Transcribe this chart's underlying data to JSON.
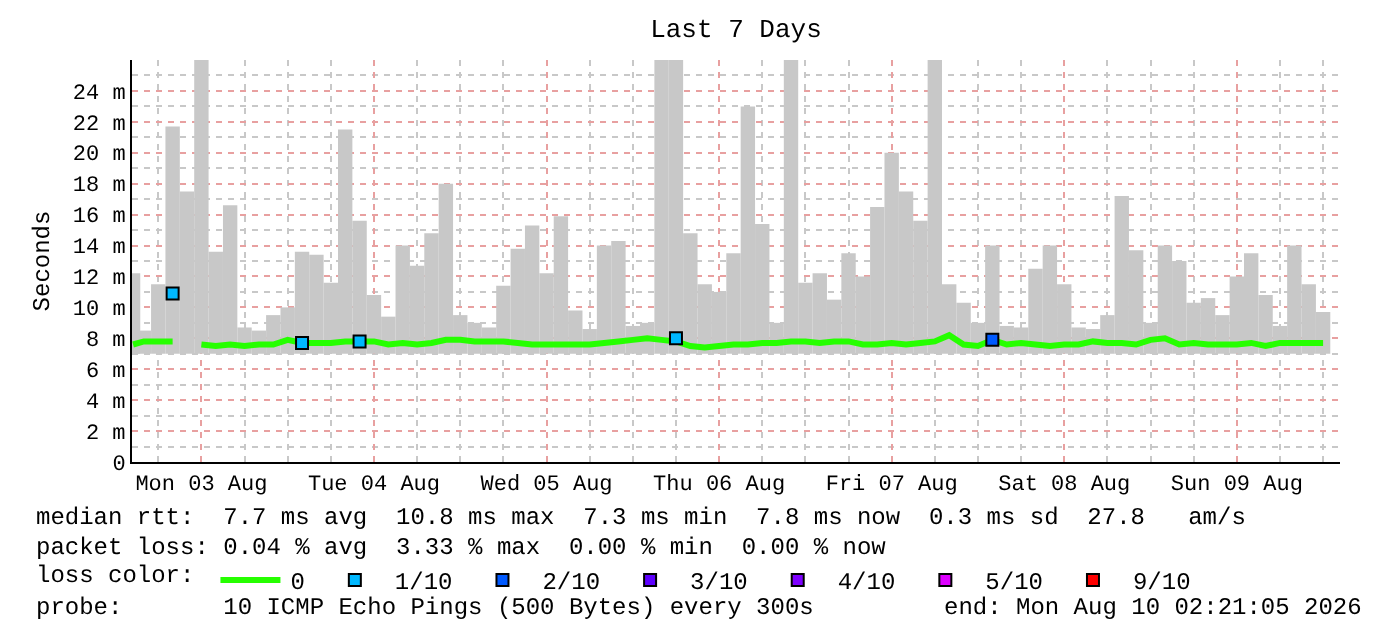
{
  "chart_data": {
    "type": "line",
    "title": "Last 7 Days",
    "ylabel": "Seconds",
    "legend_title": "loss color:",
    "x": [
      "2026-08-03T02:30",
      "2026-08-03T04:00",
      "2026-08-03T06:00",
      "2026-08-03T08:00",
      "2026-08-03T10:00",
      "2026-08-03T12:00",
      "2026-08-03T14:00",
      "2026-08-03T16:00",
      "2026-08-03T18:00",
      "2026-08-03T20:00",
      "2026-08-03T22:00",
      "2026-08-04T00:00",
      "2026-08-04T02:00",
      "2026-08-04T04:00",
      "2026-08-04T06:00",
      "2026-08-04T08:00",
      "2026-08-04T10:00",
      "2026-08-04T12:00",
      "2026-08-04T14:00",
      "2026-08-04T16:00",
      "2026-08-04T18:00",
      "2026-08-04T20:00",
      "2026-08-04T22:00",
      "2026-08-05T00:00",
      "2026-08-05T02:00",
      "2026-08-05T04:00",
      "2026-08-05T06:00",
      "2026-08-05T08:00",
      "2026-08-05T10:00",
      "2026-08-05T12:00",
      "2026-08-05T14:00",
      "2026-08-05T16:00",
      "2026-08-05T18:00",
      "2026-08-05T20:00",
      "2026-08-05T22:00",
      "2026-08-06T00:00",
      "2026-08-06T02:00",
      "2026-08-06T04:00",
      "2026-08-06T06:00",
      "2026-08-06T08:00",
      "2026-08-06T10:00",
      "2026-08-06T12:00",
      "2026-08-06T14:00",
      "2026-08-06T16:00",
      "2026-08-06T18:00",
      "2026-08-06T20:00",
      "2026-08-06T22:00",
      "2026-08-07T00:00",
      "2026-08-07T02:00",
      "2026-08-07T04:00",
      "2026-08-07T06:00",
      "2026-08-07T08:00",
      "2026-08-07T10:00",
      "2026-08-07T12:00",
      "2026-08-07T14:00",
      "2026-08-07T16:00",
      "2026-08-07T18:00",
      "2026-08-07T20:00",
      "2026-08-07T22:00",
      "2026-08-08T00:00",
      "2026-08-08T02:00",
      "2026-08-08T04:00",
      "2026-08-08T06:00",
      "2026-08-08T08:00",
      "2026-08-08T10:00",
      "2026-08-08T12:00",
      "2026-08-08T14:00",
      "2026-08-08T16:00",
      "2026-08-08T18:00",
      "2026-08-08T20:00",
      "2026-08-08T22:00",
      "2026-08-09T00:00",
      "2026-08-09T02:00",
      "2026-08-09T04:00",
      "2026-08-09T06:00",
      "2026-08-09T08:00",
      "2026-08-09T10:00",
      "2026-08-09T12:00",
      "2026-08-09T14:00",
      "2026-08-09T16:00",
      "2026-08-09T18:00",
      "2026-08-09T20:00",
      "2026-08-09T22:00",
      "2026-08-10T00:00"
    ],
    "series": [
      {
        "type": "bar",
        "color": "#c8c8c8",
        "base": [
          7,
          7,
          7,
          7,
          7,
          7,
          7,
          7,
          7,
          7,
          7,
          7,
          7,
          7,
          7,
          7,
          7,
          7,
          7,
          7,
          7,
          7,
          7,
          7,
          7,
          7,
          7,
          7,
          7,
          7,
          7,
          7,
          7,
          7,
          7,
          7,
          7,
          7,
          7,
          7,
          7,
          7,
          7,
          7,
          7,
          7,
          7,
          7,
          7,
          7,
          7,
          7,
          7,
          7,
          7,
          7,
          7,
          7,
          7,
          7,
          7,
          7,
          7,
          7,
          7,
          7,
          7,
          7,
          7,
          7,
          7,
          7,
          7,
          7,
          7,
          7,
          7,
          7,
          7,
          7,
          7,
          7,
          7,
          7
        ],
        "values": [
          5.2,
          1.5,
          4.5,
          14.7,
          10.5,
          19.0,
          6.6,
          9.6,
          1.7,
          1.5,
          2.5,
          3.0,
          6.6,
          6.4,
          4.6,
          14.5,
          8.6,
          3.8,
          2.4,
          7.0,
          5.7,
          7.8,
          11.0,
          2.5,
          2.0,
          1.7,
          4.4,
          6.8,
          8.3,
          5.2,
          8.9,
          2.8,
          1.6,
          7.0,
          7.3,
          1.8,
          2.0,
          19.0,
          19.0,
          7.8,
          4.5,
          4.0,
          6.5,
          16.0,
          8.4,
          2.0,
          19.0,
          4.6,
          5.2,
          3.5,
          6.5,
          5.0,
          9.5,
          13.0,
          10.5,
          8.6,
          19.0,
          4.5,
          3.3,
          2.0,
          7.0,
          1.8,
          1.7,
          5.5,
          7.0,
          4.5,
          1.7,
          1.6,
          2.5,
          10.2,
          6.7,
          2.0,
          7.0,
          6.0,
          3.3,
          3.6,
          2.5,
          5.0,
          6.5,
          3.8,
          1.8,
          7.0,
          4.5,
          2.7
        ]
      },
      {
        "name": "0",
        "color": "#26ff00",
        "values": [
          7.6,
          7.8,
          7.8,
          7.8,
          null,
          7.6,
          7.5,
          7.6,
          7.5,
          7.6,
          7.6,
          7.9,
          7.7,
          7.7,
          7.7,
          7.8,
          7.8,
          7.8,
          7.6,
          7.7,
          7.6,
          7.7,
          7.9,
          7.9,
          7.8,
          7.8,
          7.8,
          7.7,
          7.6,
          7.6,
          7.6,
          7.6,
          7.6,
          7.7,
          7.8,
          7.9,
          8.0,
          7.9,
          7.8,
          7.5,
          7.4,
          7.5,
          7.6,
          7.6,
          7.7,
          7.7,
          7.8,
          7.8,
          7.7,
          7.8,
          7.8,
          7.6,
          7.6,
          7.7,
          7.6,
          7.7,
          7.8,
          8.2,
          7.6,
          7.5,
          7.9,
          7.6,
          7.7,
          7.6,
          7.5,
          7.6,
          7.6,
          7.8,
          7.7,
          7.7,
          7.6,
          7.9,
          8.0,
          7.6,
          7.7,
          7.6,
          7.6,
          7.6,
          7.7,
          7.5,
          7.7,
          7.7,
          7.7,
          7.7
        ]
      },
      {
        "type": "scatter",
        "marker": "square",
        "name": "1/10",
        "color": "#00b8ff",
        "x": [
          "2026-08-03T08:00",
          "2026-08-04T02:00",
          "2026-08-04T10:00",
          "2026-08-06T06:00"
        ],
        "values": [
          10.9,
          7.7,
          7.8,
          8.0
        ]
      },
      {
        "type": "scatter",
        "marker": "square",
        "name": "2/10",
        "color": "#0059ff",
        "x": [
          "2026-08-08T02:00"
        ],
        "values": [
          7.9
        ]
      },
      {
        "type": "scatter",
        "marker": "square",
        "name": "3/10",
        "color": "#5e00ff",
        "values": [
          null,
          null,
          null,
          null,
          null,
          null,
          null,
          null,
          null,
          null,
          null,
          null,
          null,
          null,
          null,
          null,
          null,
          null,
          null,
          null,
          null,
          null,
          null,
          null,
          null,
          null,
          null,
          null,
          null,
          null,
          null,
          null,
          null,
          null,
          null,
          null,
          null,
          null,
          null,
          null,
          null,
          null,
          null,
          null,
          null,
          null,
          null,
          null,
          null,
          null,
          null,
          null,
          null,
          null,
          null,
          null,
          null,
          null,
          null,
          null,
          null,
          null,
          null,
          null,
          null,
          null,
          null,
          null,
          null,
          null,
          null,
          null,
          null,
          null,
          null,
          null,
          null,
          null,
          null,
          null,
          null,
          null,
          null,
          null
        ]
      },
      {
        "type": "scatter",
        "marker": "square",
        "name": "4/10",
        "color": "#7e00ff",
        "values": [
          null,
          null,
          null,
          null,
          null,
          null,
          null,
          null,
          null,
          null,
          null,
          null,
          null,
          null,
          null,
          null,
          null,
          null,
          null,
          null,
          null,
          null,
          null,
          null,
          null,
          null,
          null,
          null,
          null,
          null,
          null,
          null,
          null,
          null,
          null,
          null,
          null,
          null,
          null,
          null,
          null,
          null,
          null,
          null,
          null,
          null,
          null,
          null,
          null,
          null,
          null,
          null,
          null,
          null,
          null,
          null,
          null,
          null,
          null,
          null,
          null,
          null,
          null,
          null,
          null,
          null,
          null,
          null,
          null,
          null,
          null,
          null,
          null,
          null,
          null,
          null,
          null,
          null,
          null,
          null,
          null,
          null,
          null,
          null
        ]
      },
      {
        "type": "scatter",
        "marker": "square",
        "name": "5/10",
        "color": "#dd00ff",
        "values": [
          null,
          null,
          null,
          null,
          null,
          null,
          null,
          null,
          null,
          null,
          null,
          null,
          null,
          null,
          null,
          null,
          null,
          null,
          null,
          null,
          null,
          null,
          null,
          null,
          null,
          null,
          null,
          null,
          null,
          null,
          null,
          null,
          null,
          null,
          null,
          null,
          null,
          null,
          null,
          null,
          null,
          null,
          null,
          null,
          null,
          null,
          null,
          null,
          null,
          null,
          null,
          null,
          null,
          null,
          null,
          null,
          null,
          null,
          null,
          null,
          null,
          null,
          null,
          null,
          null,
          null,
          null,
          null,
          null,
          null,
          null,
          null,
          null,
          null,
          null,
          null,
          null,
          null,
          null,
          null,
          null,
          null,
          null,
          null
        ]
      },
      {
        "type": "scatter",
        "marker": "square",
        "name": "9/10",
        "color": "#ff0000",
        "values": [
          null,
          null,
          null,
          null,
          null,
          null,
          null,
          null,
          null,
          null,
          null,
          null,
          null,
          null,
          null,
          null,
          null,
          null,
          null,
          null,
          null,
          null,
          null,
          null,
          null,
          null,
          null,
          null,
          null,
          null,
          null,
          null,
          null,
          null,
          null,
          null,
          null,
          null,
          null,
          null,
          null,
          null,
          null,
          null,
          null,
          null,
          null,
          null,
          null,
          null,
          null,
          null,
          null,
          null,
          null,
          null,
          null,
          null,
          null,
          null,
          null,
          null,
          null,
          null,
          null,
          null,
          null,
          null,
          null,
          null,
          null,
          null,
          null,
          null,
          null,
          null,
          null,
          null,
          null,
          null,
          null,
          null,
          null,
          null
        ]
      }
    ],
    "xlim": [
      "2026-08-03T02:21",
      "2026-08-10T02:21"
    ],
    "xticks": [
      {
        "value": "2026-08-03T12:00",
        "label": "Mon 03 Aug"
      },
      {
        "value": "2026-08-04T12:00",
        "label": "Tue 04 Aug"
      },
      {
        "value": "2026-08-05T12:00",
        "label": "Wed 05 Aug"
      },
      {
        "value": "2026-08-06T12:00",
        "label": "Thu 06 Aug"
      },
      {
        "value": "2026-08-07T12:00",
        "label": "Fri 07 Aug"
      },
      {
        "value": "2026-08-08T12:00",
        "label": "Sat 08 Aug"
      },
      {
        "value": "2026-08-09T12:00",
        "label": "Sun 09 Aug"
      }
    ],
    "ylim": [
      0,
      26
    ],
    "yticks": [
      0,
      {
        "value": 2,
        "label": "2 m"
      },
      {
        "value": 4,
        "label": "4 m"
      },
      {
        "value": 6,
        "label": "6 m"
      },
      {
        "value": 8,
        "label": "8 m"
      },
      {
        "value": 10,
        "label": "10 m"
      },
      {
        "value": 12,
        "label": "12 m"
      },
      {
        "value": 14,
        "label": "14 m"
      },
      {
        "value": 16,
        "label": "16 m"
      },
      {
        "value": 18,
        "label": "18 m"
      },
      {
        "value": 20,
        "label": "20 m"
      },
      {
        "value": 22,
        "label": "22 m"
      },
      {
        "value": 24,
        "label": "24 m"
      }
    ],
    "grid": true,
    "legend": "bottom",
    "annotations": [
      "median rtt:  7.7 ms avg  10.8 ms max  7.3 ms min  7.8 ms now  0.3 ms sd  27.8   am/s",
      "packet loss: 0.04 % avg  3.33 % max  0.00 % min  0.00 % now",
      "probe:       10 ICMP Echo Pings (500 Bytes) every 300s",
      "end: Mon Aug 10 02:21:05 2026"
    ]
  }
}
